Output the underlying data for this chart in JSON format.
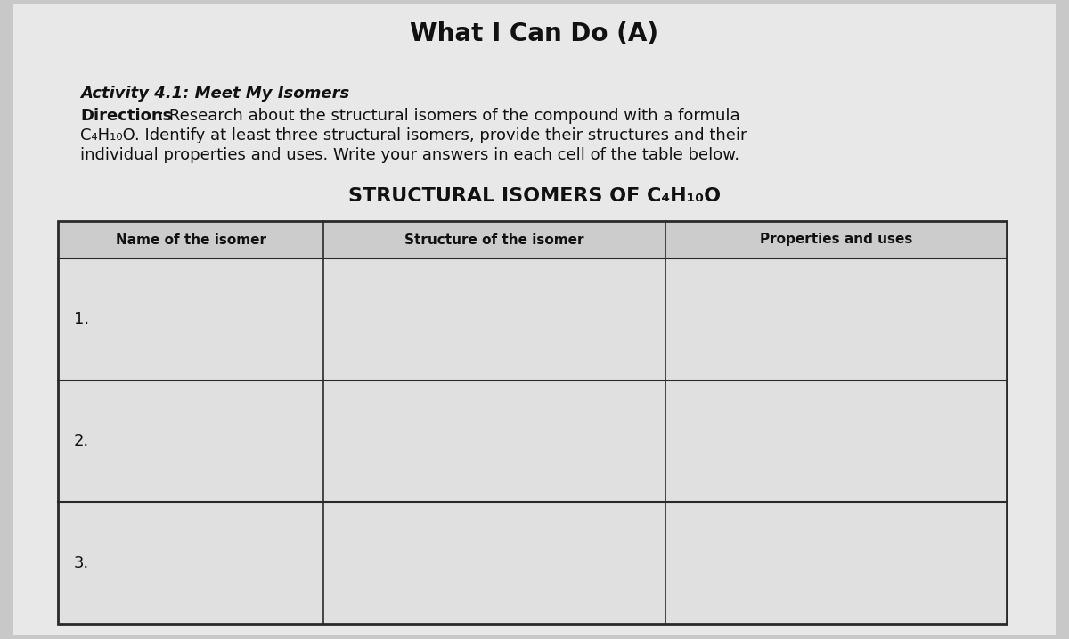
{
  "title": "What I Can Do (A)",
  "activity_title": "Activity 4.1: Meet My Isomers",
  "directions_bold": "Directions",
  "directions_rest": ": Research about the structural isomers of the compound with a formula C₄H₁₀O. Identify at least three structural isomers, provide their structures and their individual properties and uses. Write your answers in each cell of the table below.",
  "table_title": "STRUCTURAL ISOMERS OF C₄H₁₀O",
  "col_headers": [
    "Name of the isomer",
    "Structure of the isomer",
    "Properties and uses"
  ],
  "row_labels": [
    "1.",
    "2.",
    "3."
  ],
  "bg_color": "#c8c8c8",
  "page_color": "#e8e8e8",
  "cell_color": "#e0e0e0",
  "header_cell_color": "#cccccc",
  "line_color": "#2a2a2a",
  "title_fontsize": 20,
  "activity_fontsize": 13,
  "directions_fontsize": 13,
  "table_title_fontsize": 16,
  "header_fontsize": 11,
  "row_label_fontsize": 13
}
